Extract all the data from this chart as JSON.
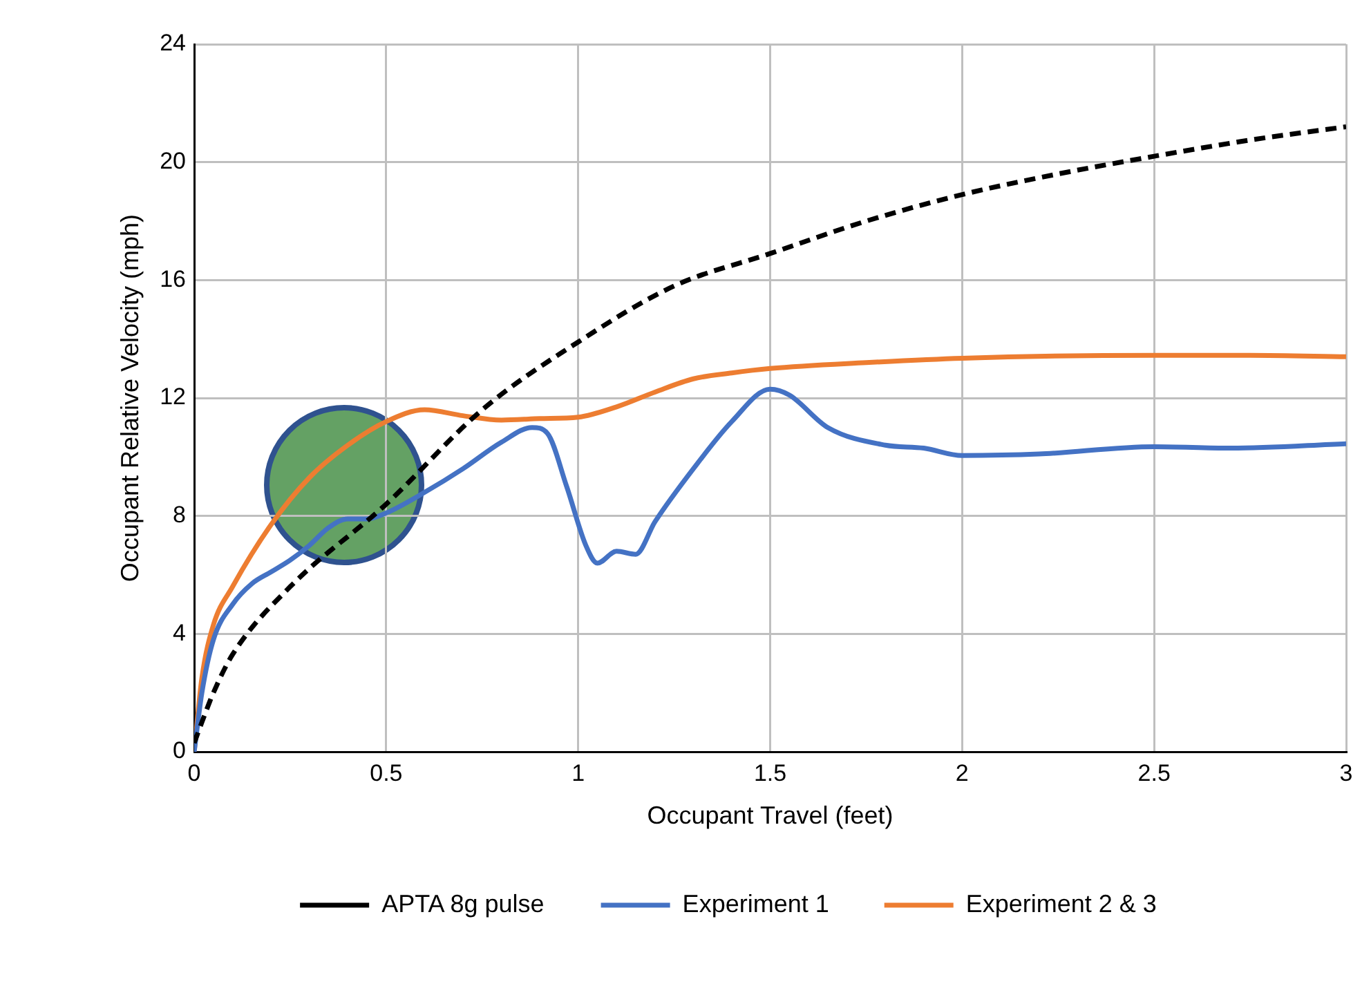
{
  "chart_data": {
    "type": "line",
    "xlabel": "Occupant Travel (feet)",
    "ylabel": "Occupant Relative Velocity (mph)",
    "xlim": [
      0,
      3
    ],
    "xticks": [
      0,
      0.5,
      1,
      1.5,
      2,
      2.5,
      3
    ],
    "ylim": [
      0,
      24
    ],
    "yticks": [
      0,
      4,
      8,
      12,
      16,
      20,
      24
    ],
    "grid": true,
    "legend": "bottom",
    "marker": "none",
    "series": [
      {
        "name": "APTA 8g pulse",
        "color": "#000000",
        "line_style": "dashed",
        "x": [
          0,
          0.02,
          0.05,
          0.1,
          0.25,
          0.5,
          0.75,
          1,
          1.25,
          1.5,
          1.75,
          2,
          2.25,
          2.5,
          2.75,
          3
        ],
        "values": [
          0.3,
          1,
          2,
          3.3,
          5.6,
          8.4,
          11.6,
          13.9,
          15.8,
          16.9,
          18,
          18.9,
          19.6,
          20.2,
          20.75,
          21.2
        ]
      },
      {
        "name": "Experiment 1",
        "color": "#4472c4",
        "line_style": "solid",
        "x": [
          0,
          0.02,
          0.05,
          0.1,
          0.15,
          0.2,
          0.25,
          0.3,
          0.35,
          0.4,
          0.45,
          0.5,
          0.6,
          0.7,
          0.8,
          0.88,
          0.92,
          0.97,
          1.02,
          1.05,
          1.1,
          1.15,
          1.2,
          1.3,
          1.4,
          1.5,
          1.55,
          1.65,
          1.8,
          1.9,
          2,
          2.2,
          2.5,
          2.7,
          3
        ],
        "values": [
          0,
          2,
          3.8,
          5,
          5.7,
          6.1,
          6.5,
          7,
          7.6,
          7.9,
          7.9,
          8.1,
          8.8,
          9.6,
          10.5,
          11,
          10.8,
          9,
          7,
          6.4,
          6.8,
          6.7,
          7.8,
          9.6,
          11.2,
          12.3,
          12.1,
          11,
          10.4,
          10.3,
          10.05,
          10.1,
          10.35,
          10.3,
          10.45
        ]
      },
      {
        "name": "Experiment 2 & 3",
        "color": "#ed7d31",
        "line_style": "solid",
        "x": [
          0,
          0.02,
          0.05,
          0.1,
          0.2,
          0.3,
          0.4,
          0.5,
          0.6,
          0.7,
          0.8,
          0.9,
          1,
          1.1,
          1.2,
          1.3,
          1.4,
          1.5,
          1.75,
          2,
          2.5,
          2.75,
          3
        ],
        "values": [
          0,
          2.5,
          4.3,
          5.6,
          7.7,
          9.3,
          10.4,
          11.2,
          11.6,
          11.4,
          11.25,
          11.3,
          11.35,
          11.7,
          12.2,
          12.65,
          12.85,
          13,
          13.2,
          13.35,
          13.45,
          13.45,
          13.4
        ]
      }
    ]
  }
}
